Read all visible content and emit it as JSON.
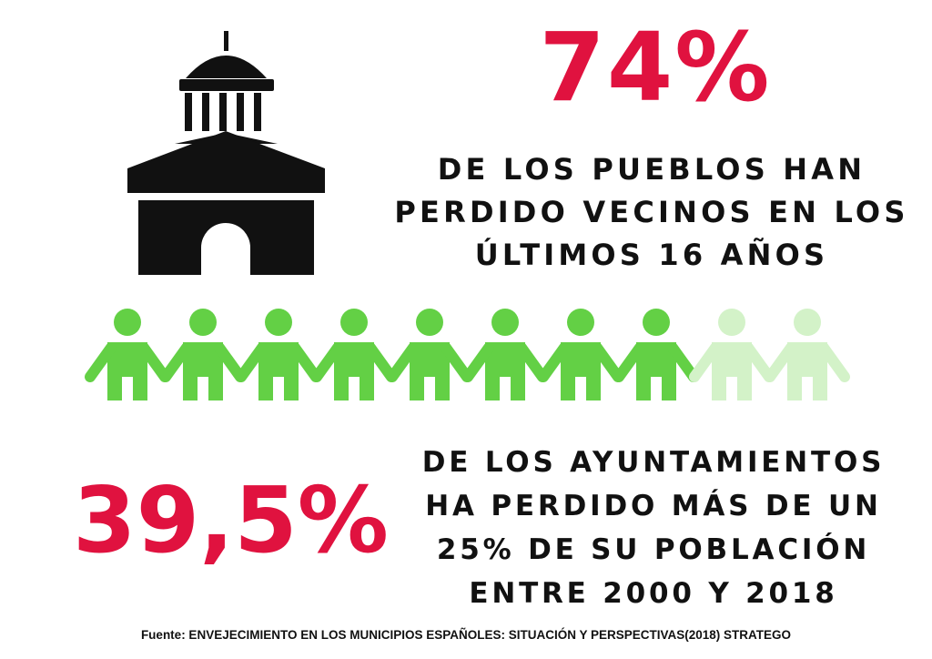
{
  "stat1": {
    "value": "74%",
    "caption_lines": [
      "DE LOS PUEBLOS HAN",
      "PERDIDO VECINOS EN LOS",
      "ÚLTIMOS 16 AÑOS"
    ]
  },
  "stat2": {
    "value": "39,5%",
    "caption_lines": [
      "DE LOS AYUNTAMIENTOS",
      "HA PERDIDO MÁS DE UN",
      "25% DE SU POBLACIÓN",
      "ENTRE 2000 Y 2018"
    ]
  },
  "people": {
    "total": 10,
    "highlighted": 8,
    "color_full": "#63d045",
    "color_faded": "#d3f2c8"
  },
  "icons": {
    "building": "town-hall-icon",
    "person": "person-icon"
  },
  "colors": {
    "accent": "#e0123f",
    "text": "#111111"
  },
  "source": "Fuente: ENVEJECIMIENTO EN LOS MUNICIPIOS ESPAÑOLES: SITUACIÓN Y PERSPECTIVAS(2018) STRATEGO"
}
